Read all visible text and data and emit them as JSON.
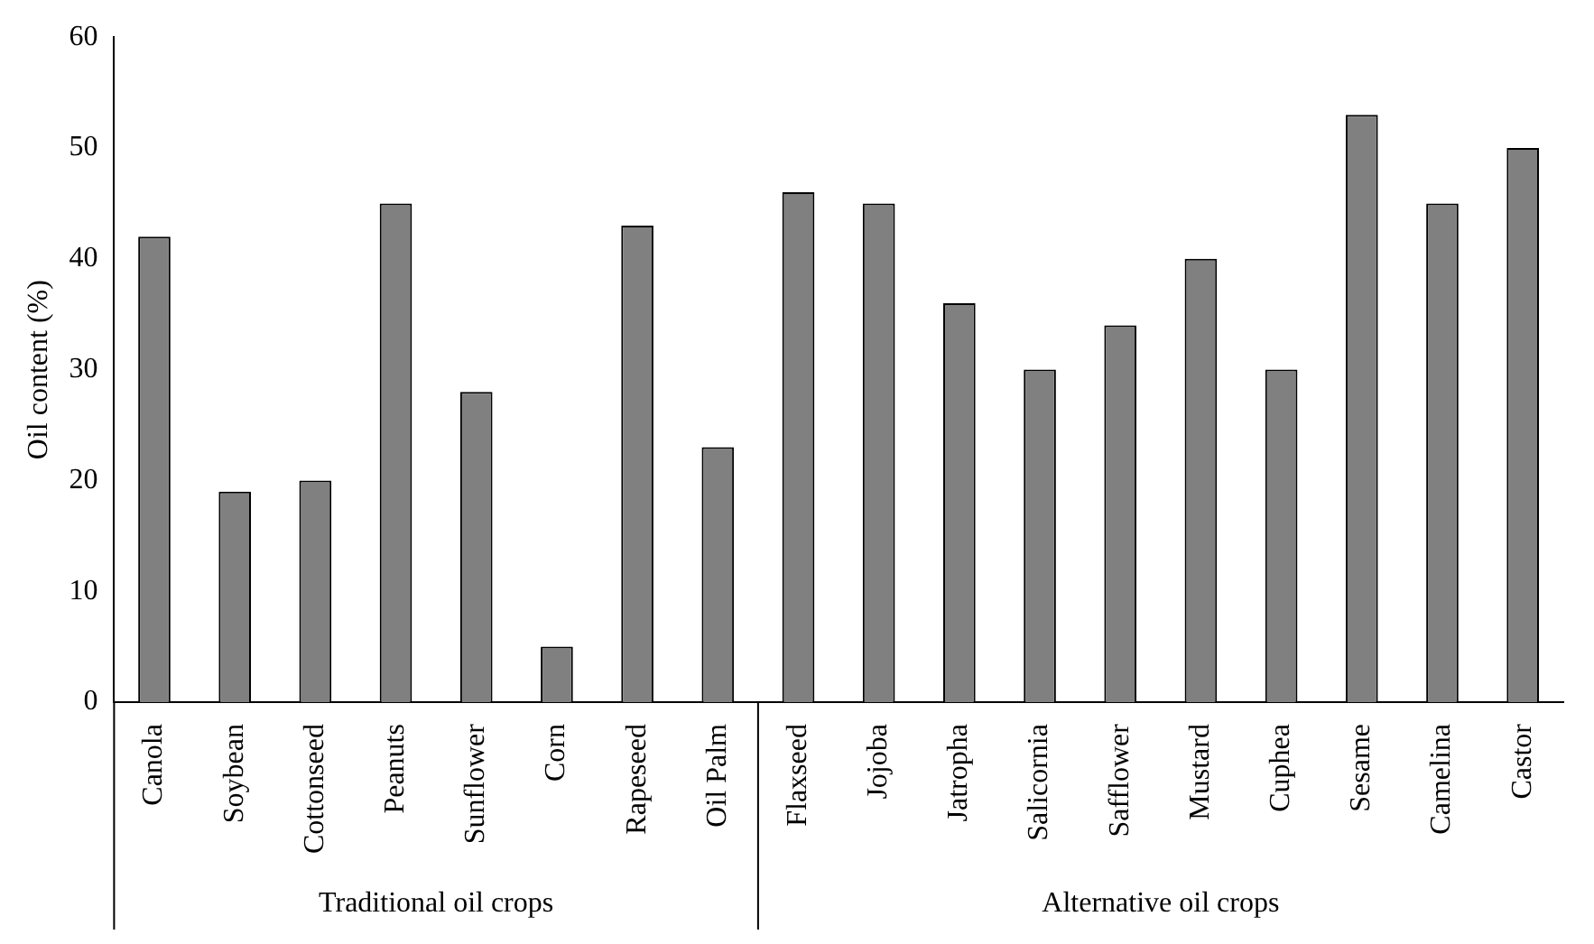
{
  "chart_data": {
    "type": "bar",
    "ylabel": "Oil content (%)",
    "categories": [
      "Canola",
      "Soybean",
      "Cottonseed",
      "Peanuts",
      "Sunflower",
      "Corn",
      "Rapeseed",
      "Oil Palm",
      "Flaxseed",
      "Jojoba",
      "Jatropha",
      "Salicornia",
      "Safflower",
      "Mustard",
      "Cuphea",
      "Sesame",
      "Camelina",
      "Castor"
    ],
    "values": [
      42,
      19,
      20,
      45,
      28,
      5,
      43,
      23,
      46,
      45,
      36,
      30,
      34,
      40,
      30,
      53,
      45,
      50
    ],
    "color": "#808080",
    "ylim": [
      0,
      60
    ],
    "yticks": [
      0,
      10,
      20,
      30,
      40,
      50,
      60
    ],
    "grid": false,
    "legend": false,
    "annotations": [
      "Traditional oil crops",
      "Alternative oil crops"
    ]
  }
}
